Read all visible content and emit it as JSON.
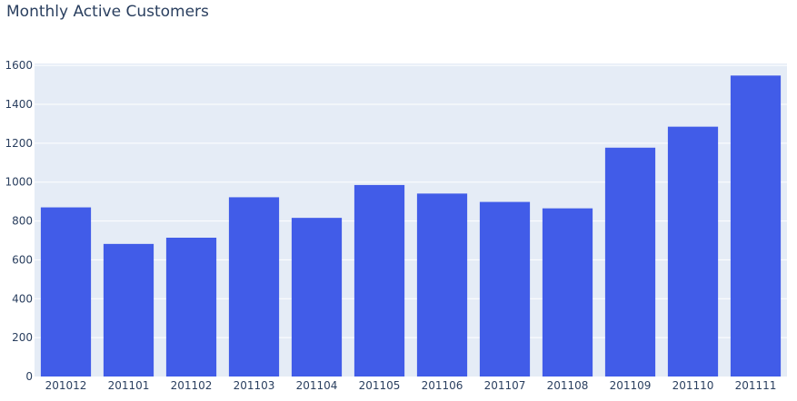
{
  "chart_data": {
    "type": "bar",
    "title": "Monthly Active Customers",
    "xlabel": "",
    "ylabel": "",
    "categories": [
      "201012",
      "201101",
      "201102",
      "201103",
      "201104",
      "201105",
      "201106",
      "201107",
      "201108",
      "201109",
      "201110",
      "201111"
    ],
    "values": [
      870,
      682,
      714,
      922,
      816,
      985,
      941,
      898,
      865,
      1177,
      1285,
      1548
    ],
    "ylim": [
      0,
      1610
    ],
    "yticks": [
      0,
      200,
      400,
      600,
      800,
      1000,
      1200,
      1400,
      1600
    ],
    "grid": true,
    "legend": "none",
    "colors": {
      "bar": "#415ce8",
      "plot_background": "#e5ecf6",
      "grid": "#ffffff",
      "text": "#2a3f5f"
    }
  }
}
